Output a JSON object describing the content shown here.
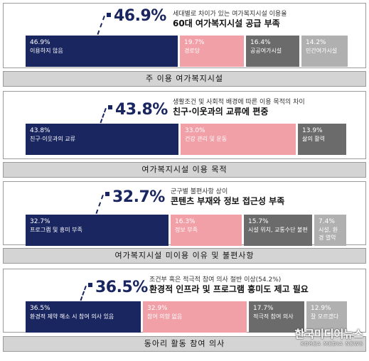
{
  "chart_data": [
    {
      "type": "bar",
      "highlight": "46.9%",
      "subtitle": "세대별로 차이가 있는 여가복지시설 이용율",
      "headline": "60대 여가복지시설 공급 부족",
      "caption": "주 이용 여가복지시설",
      "segments": [
        {
          "pct": "46.9%",
          "label": "이용하지 않음",
          "value": 46.9,
          "color": "#1a2660"
        },
        {
          "pct": "19.7%",
          "label": "경로당",
          "value": 19.7,
          "color": "#f2a0a8"
        },
        {
          "pct": "16.4%",
          "label": "공공여가시설",
          "value": 16.4,
          "color": "#6b6b6b"
        },
        {
          "pct": "14.2%",
          "label": "민간여가시설",
          "value": 14.2,
          "color": "#b0b0b0"
        }
      ]
    },
    {
      "type": "bar",
      "highlight": "43.8%",
      "subtitle": "생활조건 및 사회적 배경에 따른 이용 목적의 차이",
      "headline": "친구·이웃과의 교류에 편중",
      "caption": "여가복지시설 이용 목적",
      "segments": [
        {
          "pct": "43.8%",
          "label": "친구·이웃과의 교류",
          "value": 43.8,
          "color": "#1a2660"
        },
        {
          "pct": "33.0%",
          "label": "건강 관리 및 운동",
          "value": 33.0,
          "color": "#f2a0a8"
        },
        {
          "pct": "13.9%",
          "label": "삶의 활력",
          "value": 13.9,
          "color": "#6b6b6b"
        }
      ]
    },
    {
      "type": "bar",
      "highlight": "32.7%",
      "subtitle": "군구별 불편사항 상이",
      "headline": "콘텐츠 부재와 정보 접근성 부족",
      "caption": "여가복지시설 미이용 이유 및 불편사항",
      "segments": [
        {
          "pct": "32.7%",
          "label": "프로그램 및 흥미 부족",
          "value": 32.7,
          "color": "#1a2660"
        },
        {
          "pct": "16.3%",
          "label": "정보 부족",
          "value": 16.3,
          "color": "#f2a0a8"
        },
        {
          "pct": "15.7%",
          "label": "시설 위치, 교통수단 불편",
          "value": 15.7,
          "color": "#6b6b6b"
        },
        {
          "pct": "7.4%",
          "label": "시설, 환경 열악",
          "value": 7.4,
          "color": "#b0b0b0"
        }
      ]
    },
    {
      "type": "bar",
      "highlight": "36.5%",
      "subtitle": "조건부 혹은 적극적 참여 의사 절반 이상(54.2%)",
      "headline": "환경적 인프라 및 프로그램 흥미도 제고 필요",
      "caption": "동아리 활동 참여 의사",
      "segments": [
        {
          "pct": "36.5%",
          "label": "환경적 제약 해소 시 참여 의사 있음",
          "value": 36.5,
          "color": "#1a2660"
        },
        {
          "pct": "32.9%",
          "label": "참여 의향 없음",
          "value": 32.9,
          "color": "#f2a0a8"
        },
        {
          "pct": "17.7%",
          "label": "적극적 참여 의사",
          "value": 17.7,
          "color": "#6b6b6b"
        },
        {
          "pct": "12.9%",
          "label": "잘 모르겠다",
          "value": 12.9,
          "color": "#b0b0b0"
        }
      ]
    }
  ],
  "watermark": {
    "name": "한국미디어뉴스",
    "sub": "KOREA MEDIA NEWS"
  }
}
